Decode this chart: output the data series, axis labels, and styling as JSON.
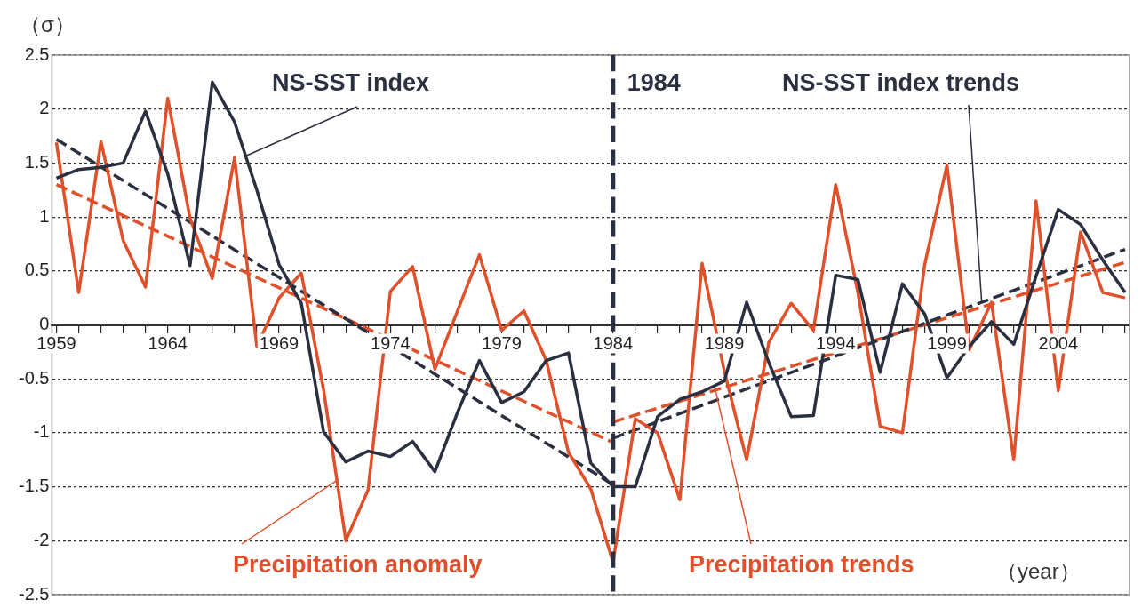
{
  "chart_data": {
    "type": "line",
    "ylabel": "（σ）",
    "xlabel": "（year）",
    "xlim": [
      1958.8,
      2007.2
    ],
    "xticks": [
      {
        "value": 1959,
        "label": "1959"
      },
      {
        "value": 1960,
        "label": null
      },
      {
        "value": 1961,
        "label": null
      },
      {
        "value": 1962,
        "label": null
      },
      {
        "value": 1963,
        "label": null
      },
      {
        "value": 1964,
        "label": "1964"
      },
      {
        "value": 1965,
        "label": null
      },
      {
        "value": 1966,
        "label": null
      },
      {
        "value": 1967,
        "label": null
      },
      {
        "value": 1968,
        "label": null
      },
      {
        "value": 1969,
        "label": "1969"
      },
      {
        "value": 1970,
        "label": null
      },
      {
        "value": 1971,
        "label": null
      },
      {
        "value": 1972,
        "label": null
      },
      {
        "value": 1973,
        "label": null
      },
      {
        "value": 1974,
        "label": "1974"
      },
      {
        "value": 1975,
        "label": null
      },
      {
        "value": 1976,
        "label": null
      },
      {
        "value": 1977,
        "label": null
      },
      {
        "value": 1978,
        "label": null
      },
      {
        "value": 1979,
        "label": "1979"
      },
      {
        "value": 1980,
        "label": null
      },
      {
        "value": 1981,
        "label": null
      },
      {
        "value": 1982,
        "label": null
      },
      {
        "value": 1983,
        "label": null
      },
      {
        "value": 1984,
        "label": "1984"
      },
      {
        "value": 1985,
        "label": null
      },
      {
        "value": 1986,
        "label": null
      },
      {
        "value": 1987,
        "label": null
      },
      {
        "value": 1988,
        "label": null
      },
      {
        "value": 1989,
        "label": "1989"
      },
      {
        "value": 1990,
        "label": null
      },
      {
        "value": 1991,
        "label": null
      },
      {
        "value": 1992,
        "label": null
      },
      {
        "value": 1993,
        "label": null
      },
      {
        "value": 1994,
        "label": "1994"
      },
      {
        "value": 1995,
        "label": null
      },
      {
        "value": 1996,
        "label": null
      },
      {
        "value": 1997,
        "label": null
      },
      {
        "value": 1998,
        "label": null
      },
      {
        "value": 1999,
        "label": "1999"
      },
      {
        "value": 2000,
        "label": null
      },
      {
        "value": 2001,
        "label": null
      },
      {
        "value": 2002,
        "label": null
      },
      {
        "value": 2003,
        "label": null
      },
      {
        "value": 2004,
        "label": "2004"
      },
      {
        "value": 2005,
        "label": null
      },
      {
        "value": 2006,
        "label": null
      },
      {
        "value": 2007,
        "label": null
      }
    ],
    "ylim": [
      -2.5,
      2.5
    ],
    "yticks": [
      -2.5,
      -2,
      -1.5,
      -1,
      -0.5,
      0,
      0.5,
      1,
      1.5,
      2,
      2.5
    ],
    "grid": "y",
    "legend": false,
    "x": [
      1959,
      1960,
      1961,
      1962,
      1963,
      1964,
      1965,
      1966,
      1967,
      1968,
      1969,
      1970,
      1971,
      1972,
      1973,
      1974,
      1975,
      1976,
      1977,
      1978,
      1979,
      1980,
      1981,
      1982,
      1983,
      1984,
      1985,
      1986,
      1987,
      1988,
      1989,
      1990,
      1991,
      1992,
      1993,
      1994,
      1995,
      1996,
      1997,
      1998,
      1999,
      2000,
      2001,
      2002,
      2003,
      2004,
      2005,
      2006,
      2007
    ],
    "series": [
      {
        "name": "NS-SST index",
        "color": "#2b3040",
        "line_style": "solid",
        "values": [
          1.36,
          1.44,
          1.46,
          1.5,
          1.98,
          1.4,
          0.55,
          2.25,
          1.88,
          1.25,
          0.56,
          0.2,
          -0.99,
          -1.27,
          -1.17,
          -1.22,
          -1.08,
          -1.36,
          -0.82,
          -0.33,
          -0.72,
          -0.62,
          -0.33,
          -0.26,
          -1.28,
          -1.5,
          -1.5,
          -0.85,
          -0.69,
          -0.62,
          -0.52,
          0.21,
          -0.35,
          -0.85,
          -0.84,
          0.46,
          0.42,
          -0.44,
          0.38,
          0.1,
          -0.49,
          -0.2,
          0.03,
          -0.18,
          0.45,
          1.07,
          0.93,
          0.6,
          0.3
        ]
      },
      {
        "name": "Precipitation anomaly",
        "color": "#e0502a",
        "line_style": "solid",
        "values": [
          1.69,
          0.3,
          1.7,
          0.78,
          0.35,
          2.1,
          0.99,
          0.43,
          1.55,
          -0.2,
          0.25,
          0.48,
          -0.6,
          -2.0,
          -1.53,
          0.31,
          0.54,
          -0.41,
          0.12,
          0.65,
          -0.05,
          0.13,
          -0.33,
          -1.18,
          -1.52,
          -2.2,
          -0.87,
          -1.0,
          -1.62,
          0.57,
          -0.43,
          -1.25,
          -0.16,
          0.2,
          -0.05,
          1.3,
          0.3,
          -0.94,
          -1.0,
          0.56,
          1.48,
          -0.23,
          0.21,
          -1.25,
          1.15,
          -0.61,
          0.86,
          0.3,
          0.25
        ]
      },
      {
        "name": "NS-SST index trends",
        "color": "#2b3040",
        "line_style": "dashed",
        "x": [
          1984,
          2007
        ],
        "values": [
          -1.05,
          0.7
        ]
      },
      {
        "name": "Precipitation trends",
        "color": "#e0502a",
        "line_style": "dashed",
        "x": [
          1984,
          2007
        ],
        "values": [
          -0.9,
          0.58
        ]
      },
      {
        "color": "#2b3040",
        "line_style": "dashed",
        "x": [
          1959,
          1984
        ],
        "values": [
          1.72,
          -1.48
        ]
      },
      {
        "color": "#e0502a",
        "line_style": "dashed",
        "x": [
          1959,
          1984
        ],
        "values": [
          1.3,
          -1.09
        ]
      }
    ],
    "ref_lines": [
      {
        "axis": "x",
        "value": 1984,
        "label": "1984",
        "color": "#2b3040",
        "line_style": "dashed"
      }
    ]
  }
}
